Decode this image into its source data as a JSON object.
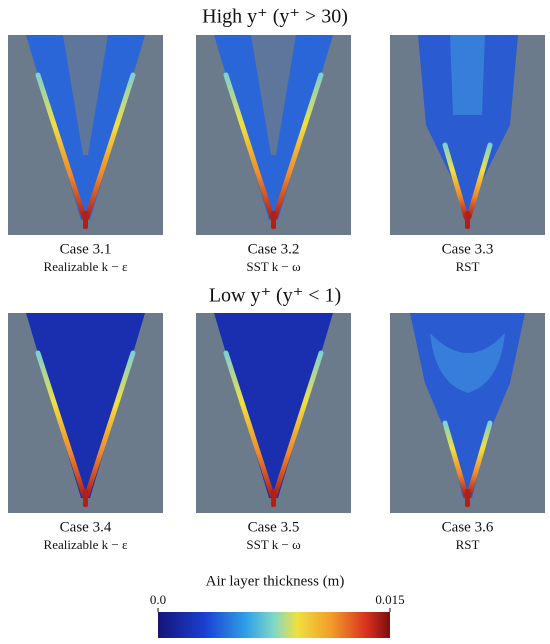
{
  "sections": [
    {
      "title": "High y⁺ (y⁺ > 30)",
      "panels": [
        {
          "case": "Case 3.1",
          "model": "Realizable k − ε"
        },
        {
          "case": "Case 3.2",
          "model": "SST k − ω"
        },
        {
          "case": "Case 3.3",
          "model": "RST"
        }
      ]
    },
    {
      "title": "Low y⁺ (y⁺ < 1)",
      "panels": [
        {
          "case": "Case 3.4",
          "model": "Realizable k − ε"
        },
        {
          "case": "Case 3.5",
          "model": "SST k − ω"
        },
        {
          "case": "Case 3.6",
          "model": "RST"
        }
      ]
    }
  ],
  "colorbar": {
    "label": "Air layer thickness (m)",
    "lim": [
      0,
      0.015
    ],
    "ticks": [
      {
        "value": 0,
        "label": "0.0"
      },
      {
        "value": 0.015,
        "label": "0.015"
      }
    ]
  }
}
